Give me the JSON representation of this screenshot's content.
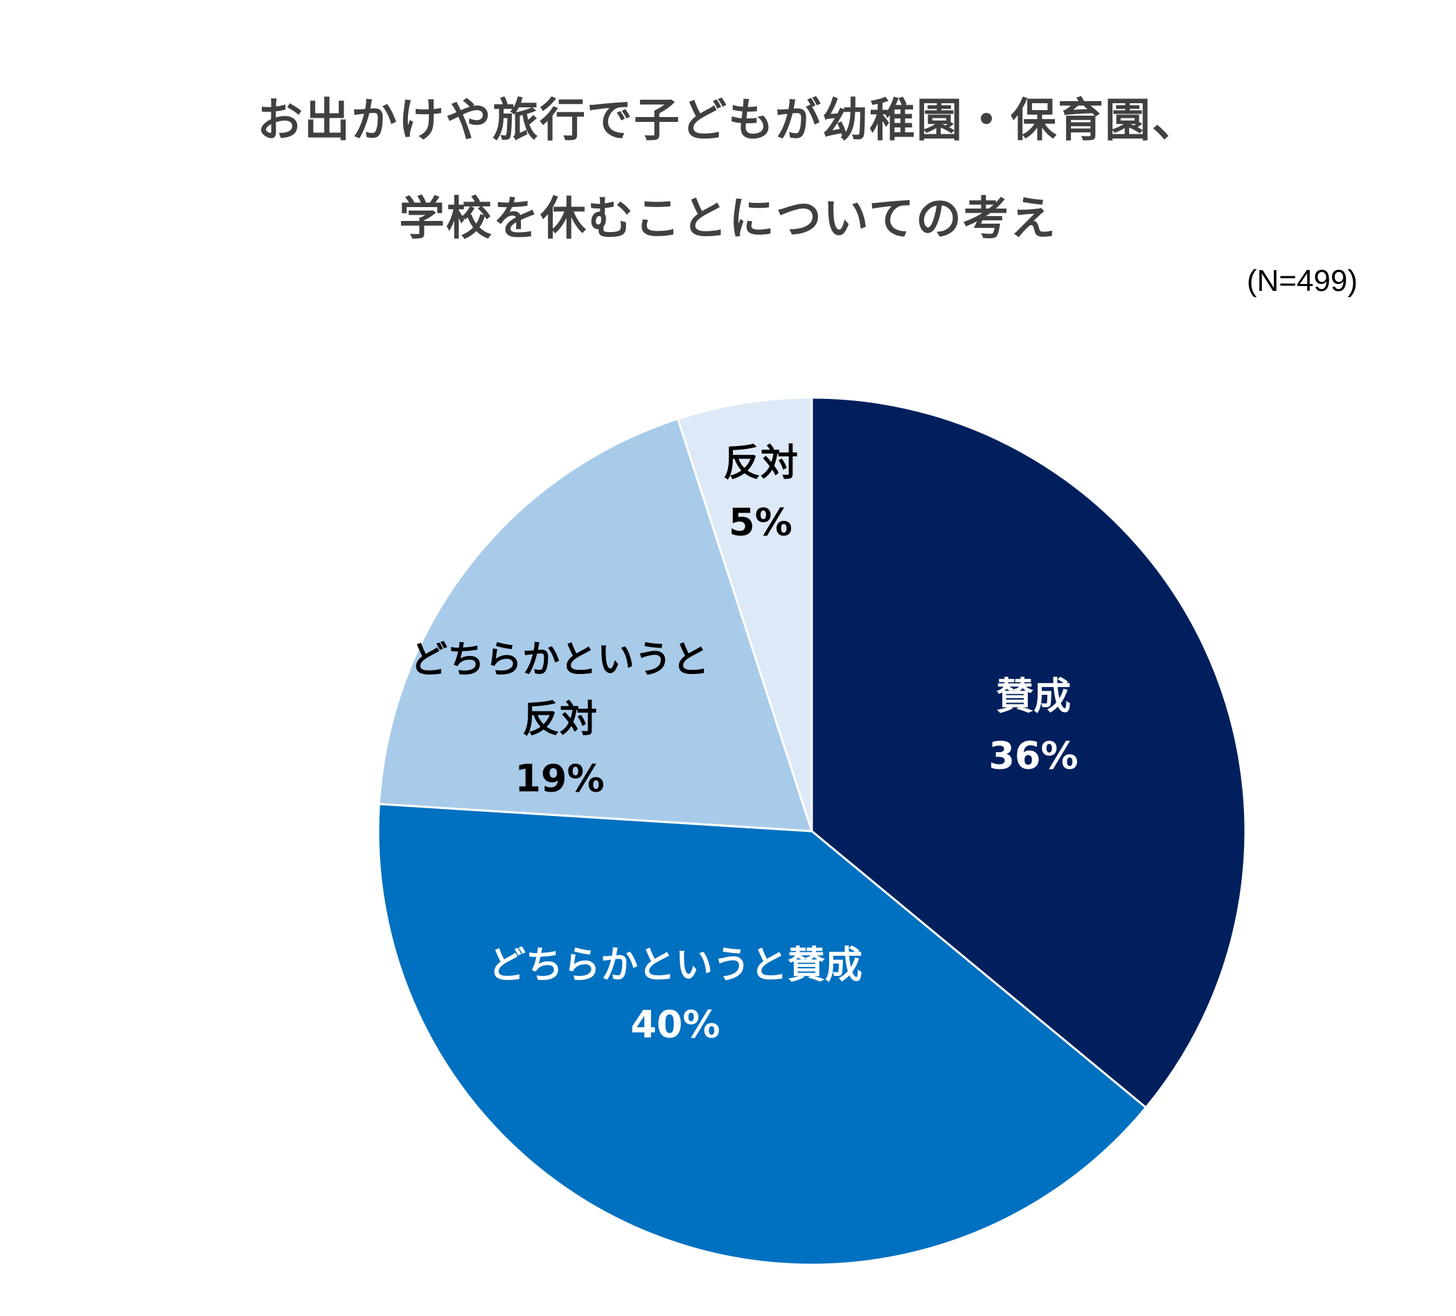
{
  "chart_data": {
    "type": "pie",
    "title_lines": [
      "お出かけや旅行で子どもが幼稚園・保育園、",
      "学校を休むことについての考え"
    ],
    "note": "(N=499)",
    "start": "12 o'clock",
    "direction": "clockwise",
    "slices": [
      {
        "label_lines": [
          "賛成"
        ],
        "value": 36,
        "value_label": "36%",
        "color": "#001F5C",
        "text_color": "#FFFFFF"
      },
      {
        "label_lines": [
          "どちらかというと賛成"
        ],
        "value": 40,
        "value_label": "40%",
        "color": "#0070C0",
        "text_color": "#FFFFFF"
      },
      {
        "label_lines": [
          "どちらかというと",
          "反対"
        ],
        "value": 19,
        "value_label": "19%",
        "color": "#A9CBEA",
        "text_color": "#000000"
      },
      {
        "label_lines": [
          "反対"
        ],
        "value": 5,
        "value_label": "5%",
        "color": "#DDE9F6",
        "text_color": "#000000"
      }
    ]
  }
}
